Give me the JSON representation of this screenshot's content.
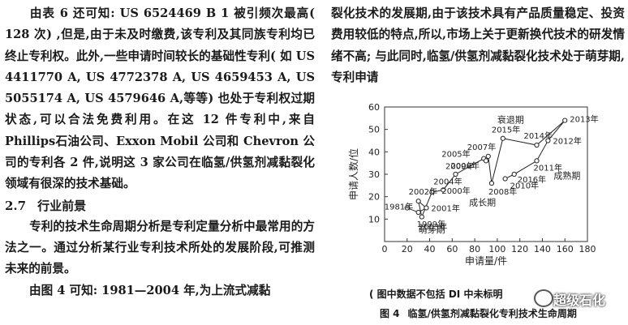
{
  "left": {
    "para1": "由表 6 还可知: US 6524469 B 1 被引频次最高( 128 次) ,但是,由于未及时缴费,该专利及其同族专利均已终止专利权。此外,一些申请时间较长的基础性专利( 如 US 4411770 A, US 4772378 A, US 4659453 A, US 5055174 A, US 4579646 A,等等) 也处于专利权过期状态,可以合法免费利用。在这 12 件专利中,来自 Phillips石油公司、Exxon Mobil 公司和 Chevron 公司的专利各 2 件,说明这 3 家公司在临氢/供氢剂减黏裂化领域有很深的技术基础。",
    "section_number": "2.7",
    "section_title": "行业前景",
    "para2": "专利的技术生命周期分析是专利定量分析中最常用的方法之一。通过分析某行业专利技术所处的发展阶段,可推测未来的前景。",
    "para3": "由图 4 可知: 1981—2004 年,为上流式减黏"
  },
  "right": {
    "para": "裂化技术的发展期,由于该技术具有产品质量稳定、投资费用较低的特点,所以,市场上关于更新换代技术的研发情绪不高; 与此同时,临氢/供氢剂减黏裂化技术处于萌芽期,专利申请"
  },
  "figure": {
    "note": "( 图中数据不包括 DI 中未标明",
    "number": "图 4",
    "title": "临氢/供氢剂减黏裂化专利技术生命周期"
  },
  "watermark": "超级石化",
  "chart_data": {
    "type": "line",
    "xlabel": "申请量/件",
    "ylabel": "申请人数/位",
    "xlim": [
      0,
      180
    ],
    "ylim": [
      0,
      60
    ],
    "xticks": [
      0,
      20,
      40,
      60,
      80,
      100,
      120,
      140,
      160,
      180
    ],
    "yticks": [
      10,
      20,
      30,
      40,
      50,
      60
    ],
    "grid": false,
    "points": [
      {
        "year": "1981年",
        "x": 20,
        "y": 15
      },
      {
        "year": "1999年",
        "x": 30,
        "y": 13
      },
      {
        "year": "2001年",
        "x": 37,
        "y": 15
      },
      {
        "year": "2002年",
        "x": 30,
        "y": 18
      },
      {
        "year": "2003年",
        "x": 33,
        "y": 11
      },
      {
        "year": "2000年",
        "x": 42,
        "y": 22
      },
      {
        "year": "2004年",
        "x": 52,
        "y": 23
      },
      {
        "year": "2006年",
        "x": 63,
        "y": 30
      },
      {
        "year": "2005年",
        "x": 88,
        "y": 37
      },
      {
        "year": "2009年",
        "x": 90,
        "y": 36
      },
      {
        "year": "2007年",
        "x": 92,
        "y": 38
      },
      {
        "year": "2008年",
        "x": 95,
        "y": 26
      },
      {
        "year": "2015年",
        "x": 105,
        "y": 46
      },
      {
        "year": "2014年",
        "x": 135,
        "y": 43
      },
      {
        "year": "2013年",
        "x": 160,
        "y": 54
      },
      {
        "year": "2012年",
        "x": 145,
        "y": 45
      },
      {
        "year": "2011年",
        "x": 135,
        "y": 36
      },
      {
        "year": "2016年",
        "x": 115,
        "y": 30
      },
      {
        "year": "2010年",
        "x": 107,
        "y": 28
      }
    ],
    "annotations": [
      "萌芽期",
      "成长期",
      "成熟期",
      "衰退期"
    ]
  }
}
